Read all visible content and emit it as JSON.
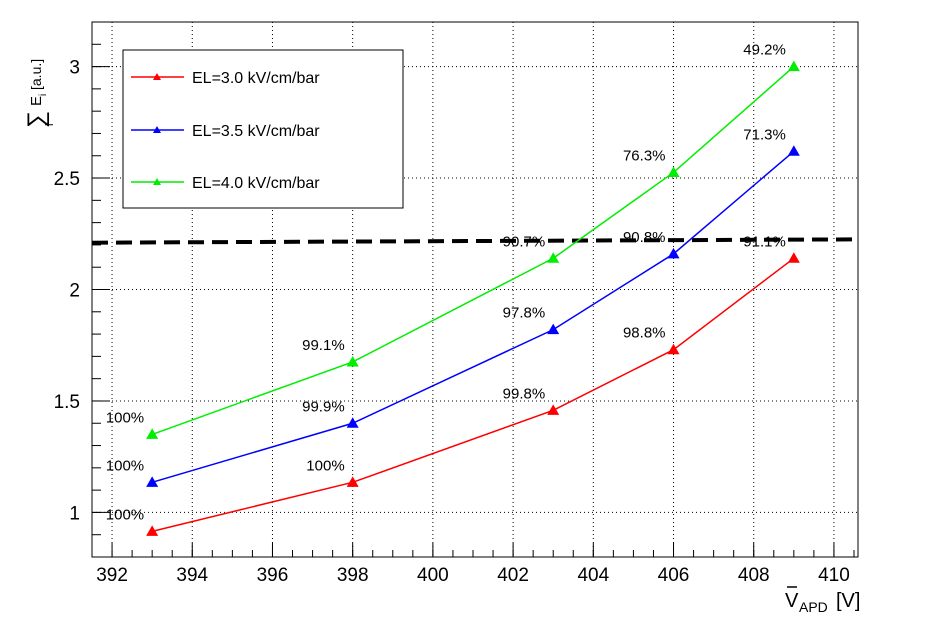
{
  "chart_data": {
    "type": "line",
    "xlabel_main": "V",
    "xlabel_sub": "APD",
    "xlabel_unit": "[V]",
    "ylabel_symbol": "∑",
    "ylabel_sub": "i",
    "ylabel_main": "E",
    "ylabel_main_sub": "i",
    "ylabel_unit": "[a.u.]",
    "xlim": [
      391.5,
      410.6
    ],
    "ylim": [
      0.8,
      3.2
    ],
    "x_ticks": [
      392,
      394,
      396,
      398,
      400,
      402,
      404,
      406,
      408,
      410
    ],
    "y_ticks": [
      1,
      1.5,
      2,
      2.5,
      3
    ],
    "grid": true,
    "legend_position": "top-left",
    "threshold_y": 2.21,
    "threshold_y_end": 2.225,
    "x": [
      393,
      398,
      403,
      406,
      409
    ],
    "series": [
      {
        "name": "EL=3.0 kV/cm/bar",
        "color": "#ff0000",
        "values": [
          0.915,
          1.135,
          1.458,
          1.73,
          2.14
        ],
        "labels": [
          "100%",
          "100%",
          "99.8%",
          "98.8%",
          "91.1%"
        ]
      },
      {
        "name": "EL=3.5 kV/cm/bar",
        "color": "#0000ff",
        "values": [
          1.135,
          1.4,
          1.82,
          2.16,
          2.62
        ],
        "labels": [
          "100%",
          "99.9%",
          "97.8%",
          "90.8%",
          "71.3%"
        ]
      },
      {
        "name": "EL=4.0 kV/cm/bar",
        "color": "#00ee00",
        "values": [
          1.35,
          1.675,
          2.14,
          2.525,
          3.0
        ],
        "labels": [
          "100%",
          "99.1%",
          "90.7%",
          "76.3%",
          "49.2%"
        ]
      }
    ]
  }
}
